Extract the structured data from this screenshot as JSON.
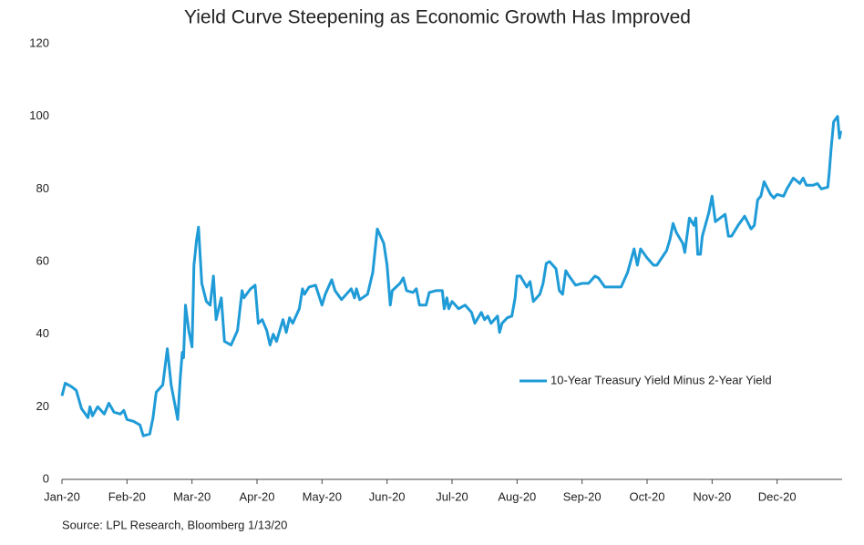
{
  "chart_data": {
    "type": "line",
    "title": "Yield Curve Steepening as Economic Growth Has Improved",
    "source": "Source: LPL Research, Bloomberg 1/13/20",
    "legend": "right",
    "x": [
      0.0,
      0.05,
      0.15,
      0.22,
      0.3,
      0.4,
      0.43,
      0.47,
      0.55,
      0.65,
      0.72,
      0.8,
      0.9,
      0.95,
      1.0,
      1.1,
      1.2,
      1.25,
      1.35,
      1.4,
      1.45,
      1.55,
      1.62,
      1.68,
      1.78,
      1.82,
      1.85,
      1.87,
      1.9,
      1.95,
      2.0,
      2.03,
      2.07,
      2.1,
      2.15,
      2.22,
      2.28,
      2.33,
      2.37,
      2.45,
      2.5,
      2.6,
      2.7,
      2.77,
      2.8,
      2.9,
      2.97,
      3.02,
      3.08,
      3.15,
      3.2,
      3.25,
      3.3,
      3.4,
      3.45,
      3.5,
      3.55,
      3.65,
      3.7,
      3.73,
      3.8,
      3.9,
      4.0,
      4.05,
      4.15,
      4.2,
      4.3,
      4.45,
      4.5,
      4.53,
      4.58,
      4.7,
      4.78,
      4.85,
      4.95,
      5.0,
      5.05,
      5.08,
      5.2,
      5.25,
      5.3,
      5.4,
      5.45,
      5.5,
      5.6,
      5.65,
      5.75,
      5.85,
      5.88,
      5.92,
      5.95,
      6.0,
      6.05,
      6.1,
      6.2,
      6.3,
      6.35,
      6.45,
      6.5,
      6.55,
      6.6,
      6.7,
      6.73,
      6.77,
      6.85,
      6.92,
      6.97,
      7.0,
      7.05,
      7.15,
      7.2,
      7.25,
      7.35,
      7.4,
      7.45,
      7.5,
      7.6,
      7.65,
      7.7,
      7.75,
      7.8,
      7.9,
      8.0,
      8.1,
      8.2,
      8.25,
      8.35,
      8.5,
      8.6,
      8.7,
      8.8,
      8.85,
      8.9,
      9.0,
      9.1,
      9.15,
      9.3,
      9.35,
      9.4,
      9.45,
      9.55,
      9.58,
      9.65,
      9.72,
      9.75,
      9.78,
      9.82,
      9.85,
      9.95,
      10.0,
      10.05,
      10.2,
      10.25,
      10.3,
      10.4,
      10.5,
      10.6,
      10.65,
      10.7,
      10.75,
      10.8,
      10.9,
      10.95,
      11.0,
      11.1,
      11.15,
      11.25,
      11.35,
      11.4,
      11.45,
      11.55,
      11.62,
      11.68,
      11.78,
      11.8,
      11.83,
      11.87,
      11.93,
      11.96,
      11.98
    ],
    "series": [
      {
        "name": "10-Year Treasury Yield Minus 2-Year Yield",
        "color": "#1f9bd7",
        "values": [
          23,
          26.5,
          25.5,
          24.5,
          19.5,
          17,
          20,
          17.5,
          20,
          18,
          21,
          18.5,
          18,
          19,
          16.5,
          16,
          15,
          12,
          12.5,
          17,
          24,
          26,
          36,
          26,
          16.5,
          28,
          35,
          33.5,
          48,
          41,
          36.5,
          59,
          66,
          69.5,
          54,
          49,
          48,
          56,
          44,
          50,
          38,
          37,
          41,
          52,
          50,
          52.5,
          53.5,
          43,
          44,
          41,
          37,
          40,
          38,
          44,
          40.5,
          44.5,
          43,
          47,
          52.5,
          51,
          53,
          53.5,
          48,
          51,
          55,
          52,
          49.5,
          52.5,
          50,
          52.5,
          49.5,
          51,
          57,
          69,
          65,
          59,
          48,
          52,
          54,
          55.5,
          52,
          51.5,
          52.5,
          48,
          48,
          51.5,
          52,
          52,
          47,
          50,
          47,
          49,
          48,
          47,
          48,
          46,
          43,
          46,
          44,
          45,
          43,
          45,
          40.5,
          43,
          44.5,
          45,
          50,
          56,
          56,
          53,
          54.5,
          49,
          51,
          54,
          59.5,
          60,
          58,
          52,
          51,
          57.5,
          56,
          53.5,
          54,
          54,
          56,
          55.5,
          53,
          53,
          53,
          57,
          63.5,
          59,
          63.5,
          61,
          59,
          59,
          63,
          66,
          70.5,
          68,
          65,
          62.5,
          72,
          70,
          72,
          62,
          62,
          67,
          73.5,
          78,
          71,
          73,
          67,
          67,
          70,
          72.5,
          69,
          70,
          77,
          78,
          82,
          78.5,
          77.5,
          78.5,
          78,
          80,
          83,
          81.5,
          83,
          81,
          81,
          81.5,
          80,
          80.5,
          84,
          91,
          98.5,
          100,
          94,
          96
        ]
      }
    ],
    "xlim": [
      0,
      12
    ],
    "xticks": [
      {
        "value": 0,
        "label": "Jan-20"
      },
      {
        "value": 1,
        "label": "Feb-20"
      },
      {
        "value": 2,
        "label": "Mar-20"
      },
      {
        "value": 3,
        "label": "Apr-20"
      },
      {
        "value": 4,
        "label": "May-20"
      },
      {
        "value": 5,
        "label": "Jun-20"
      },
      {
        "value": 6,
        "label": "Jul-20"
      },
      {
        "value": 7,
        "label": "Aug-20"
      },
      {
        "value": 8,
        "label": "Sep-20"
      },
      {
        "value": 9,
        "label": "Oct-20"
      },
      {
        "value": 10,
        "label": "Nov-20"
      },
      {
        "value": 11,
        "label": "Dec-20"
      }
    ],
    "ylim": [
      0,
      120
    ],
    "yticks": [
      0,
      20,
      40,
      60,
      80,
      100,
      120
    ],
    "grid": false
  }
}
